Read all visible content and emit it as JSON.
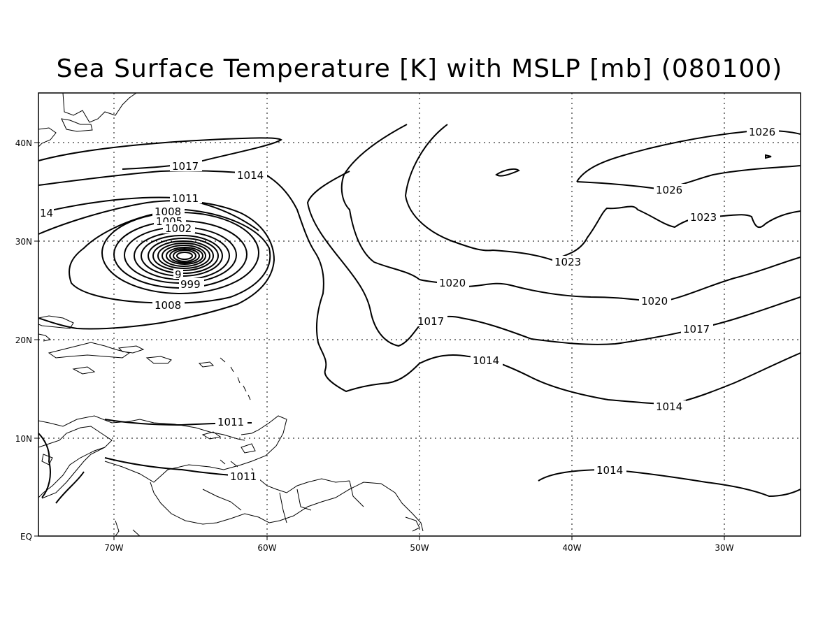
{
  "title": "Sea Surface Temperature [K] with MSLP [mb] (080100)",
  "axes": {
    "x_ticks": [
      "70W",
      "60W",
      "50W",
      "40W",
      "30W"
    ],
    "y_ticks": [
      "40N",
      "30N",
      "20N",
      "10N",
      "EQ"
    ]
  },
  "contour_labels": {
    "l1026_ne": "1026",
    "l1026_e": "1026",
    "l1023_mid": "1023",
    "l1023_e": "1023",
    "l1020_mid": "1020",
    "l1020_e": "1020",
    "l1017_nw": "1017",
    "l1017_mid": "1017",
    "l1017_e": "1017",
    "l1014_nw": "1014",
    "l1014_w": "14",
    "l1014_mid": "1014",
    "l1014_e": "1014",
    "l1014_s": "1014",
    "l1011_n": "1011",
    "l1011_car": "1011",
    "l1011_sa": "1011",
    "l1008_n": "1008",
    "l1008_s": "1008",
    "l1005": "1005",
    "l1002": "1002",
    "l999": "999",
    "l996": "9"
  }
}
